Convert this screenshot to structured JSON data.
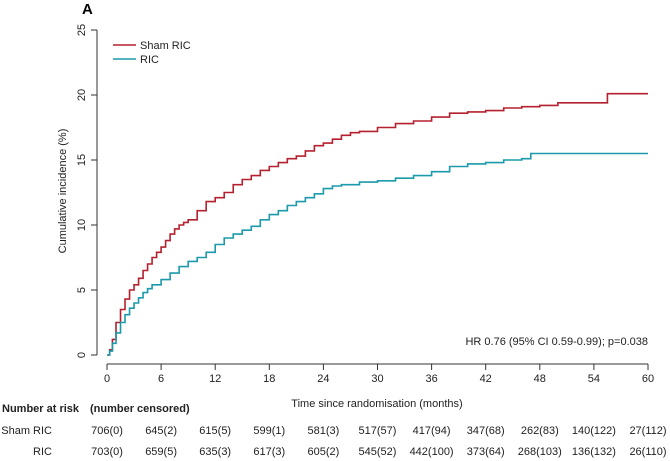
{
  "panel_label": "A",
  "colors": {
    "sham": "#b5202e",
    "ric": "#1a9aaa",
    "axis": "#333333"
  },
  "chart_data": {
    "type": "line",
    "xlabel": "Time since randomisation (months)",
    "ylabel": "Cumulative incidence (%)",
    "xlim": [
      0,
      60
    ],
    "ylim": [
      0,
      25
    ],
    "xticks": [
      0,
      6,
      12,
      18,
      24,
      30,
      36,
      42,
      48,
      54,
      60
    ],
    "yticks": [
      0,
      5,
      10,
      15,
      20,
      25
    ],
    "legend_position": "top-left",
    "annotation": "HR 0.76 (95% CI 0.59-0.99); p=0.038",
    "series": [
      {
        "name": "Sham RIC",
        "color_key": "sham",
        "points": [
          [
            0,
            0
          ],
          [
            0.3,
            0.4
          ],
          [
            0.6,
            1.2
          ],
          [
            1.0,
            2.5
          ],
          [
            1.5,
            3.5
          ],
          [
            2,
            4.3
          ],
          [
            2.5,
            5.0
          ],
          [
            3,
            5.4
          ],
          [
            3.5,
            5.9
          ],
          [
            4,
            6.5
          ],
          [
            4.5,
            7.0
          ],
          [
            5,
            7.5
          ],
          [
            5.5,
            7.9
          ],
          [
            6,
            8.3
          ],
          [
            6.5,
            8.8
          ],
          [
            7,
            9.3
          ],
          [
            7.5,
            9.7
          ],
          [
            8,
            10.0
          ],
          [
            8.5,
            10.2
          ],
          [
            9,
            10.4
          ],
          [
            10,
            11.1
          ],
          [
            11,
            11.8
          ],
          [
            12,
            12.1
          ],
          [
            13,
            12.5
          ],
          [
            14,
            13.1
          ],
          [
            15,
            13.5
          ],
          [
            16,
            13.8
          ],
          [
            17,
            14.2
          ],
          [
            18,
            14.5
          ],
          [
            19,
            14.8
          ],
          [
            20,
            15.1
          ],
          [
            21,
            15.3
          ],
          [
            22,
            15.7
          ],
          [
            23,
            16.1
          ],
          [
            24,
            16.3
          ],
          [
            25,
            16.6
          ],
          [
            26,
            16.9
          ],
          [
            27,
            17.1
          ],
          [
            28,
            17.2
          ],
          [
            30,
            17.5
          ],
          [
            32,
            17.8
          ],
          [
            34,
            18.0
          ],
          [
            36,
            18.3
          ],
          [
            38,
            18.6
          ],
          [
            40,
            18.7
          ],
          [
            42,
            18.8
          ],
          [
            44,
            19.0
          ],
          [
            46,
            19.1
          ],
          [
            48,
            19.2
          ],
          [
            50,
            19.4
          ],
          [
            52,
            19.4
          ],
          [
            54,
            19.4
          ],
          [
            55.5,
            19.4
          ],
          [
            55.5,
            20.1
          ],
          [
            60,
            20.1
          ]
        ]
      },
      {
        "name": "RIC",
        "color_key": "ric",
        "points": [
          [
            0,
            0
          ],
          [
            0.3,
            0.3
          ],
          [
            0.6,
            0.9
          ],
          [
            1.0,
            1.7
          ],
          [
            1.5,
            2.5
          ],
          [
            2,
            3.1
          ],
          [
            2.5,
            3.6
          ],
          [
            3,
            4.0
          ],
          [
            3.5,
            4.4
          ],
          [
            4,
            4.8
          ],
          [
            4.5,
            5.1
          ],
          [
            5,
            5.4
          ],
          [
            6,
            5.8
          ],
          [
            7,
            6.3
          ],
          [
            8,
            6.8
          ],
          [
            9,
            7.2
          ],
          [
            10,
            7.5
          ],
          [
            11,
            7.9
          ],
          [
            12,
            8.5
          ],
          [
            13,
            9.0
          ],
          [
            14,
            9.3
          ],
          [
            15,
            9.6
          ],
          [
            16,
            9.9
          ],
          [
            17,
            10.4
          ],
          [
            18,
            10.8
          ],
          [
            19,
            11.1
          ],
          [
            20,
            11.5
          ],
          [
            21,
            11.8
          ],
          [
            22,
            12.1
          ],
          [
            23,
            12.4
          ],
          [
            24,
            12.8
          ],
          [
            25,
            13.0
          ],
          [
            26,
            13.1
          ],
          [
            28,
            13.3
          ],
          [
            30,
            13.4
          ],
          [
            32,
            13.6
          ],
          [
            34,
            13.8
          ],
          [
            36,
            14.1
          ],
          [
            38,
            14.5
          ],
          [
            40,
            14.7
          ],
          [
            42,
            14.8
          ],
          [
            44,
            15.0
          ],
          [
            46,
            15.1
          ],
          [
            47,
            15.5
          ],
          [
            50,
            15.5
          ],
          [
            55,
            15.5
          ],
          [
            60,
            15.5
          ]
        ]
      }
    ]
  },
  "risk_table": {
    "header": "Number at risk",
    "subheader": "(number censored)",
    "rows": [
      {
        "label": "Sham RIC",
        "values": [
          "706(0)",
          "645(2)",
          "615(5)",
          "599(1)",
          "581(3)",
          "517(57)",
          "417(94)",
          "347(68)",
          "262(83)",
          "140(122)",
          "27(112)"
        ]
      },
      {
        "label": "RIC",
        "values": [
          "703(0)",
          "659(5)",
          "635(3)",
          "617(3)",
          "605(2)",
          "545(52)",
          "442(100)",
          "373(64)",
          "268(103)",
          "136(132)",
          "26(110)"
        ]
      }
    ]
  }
}
